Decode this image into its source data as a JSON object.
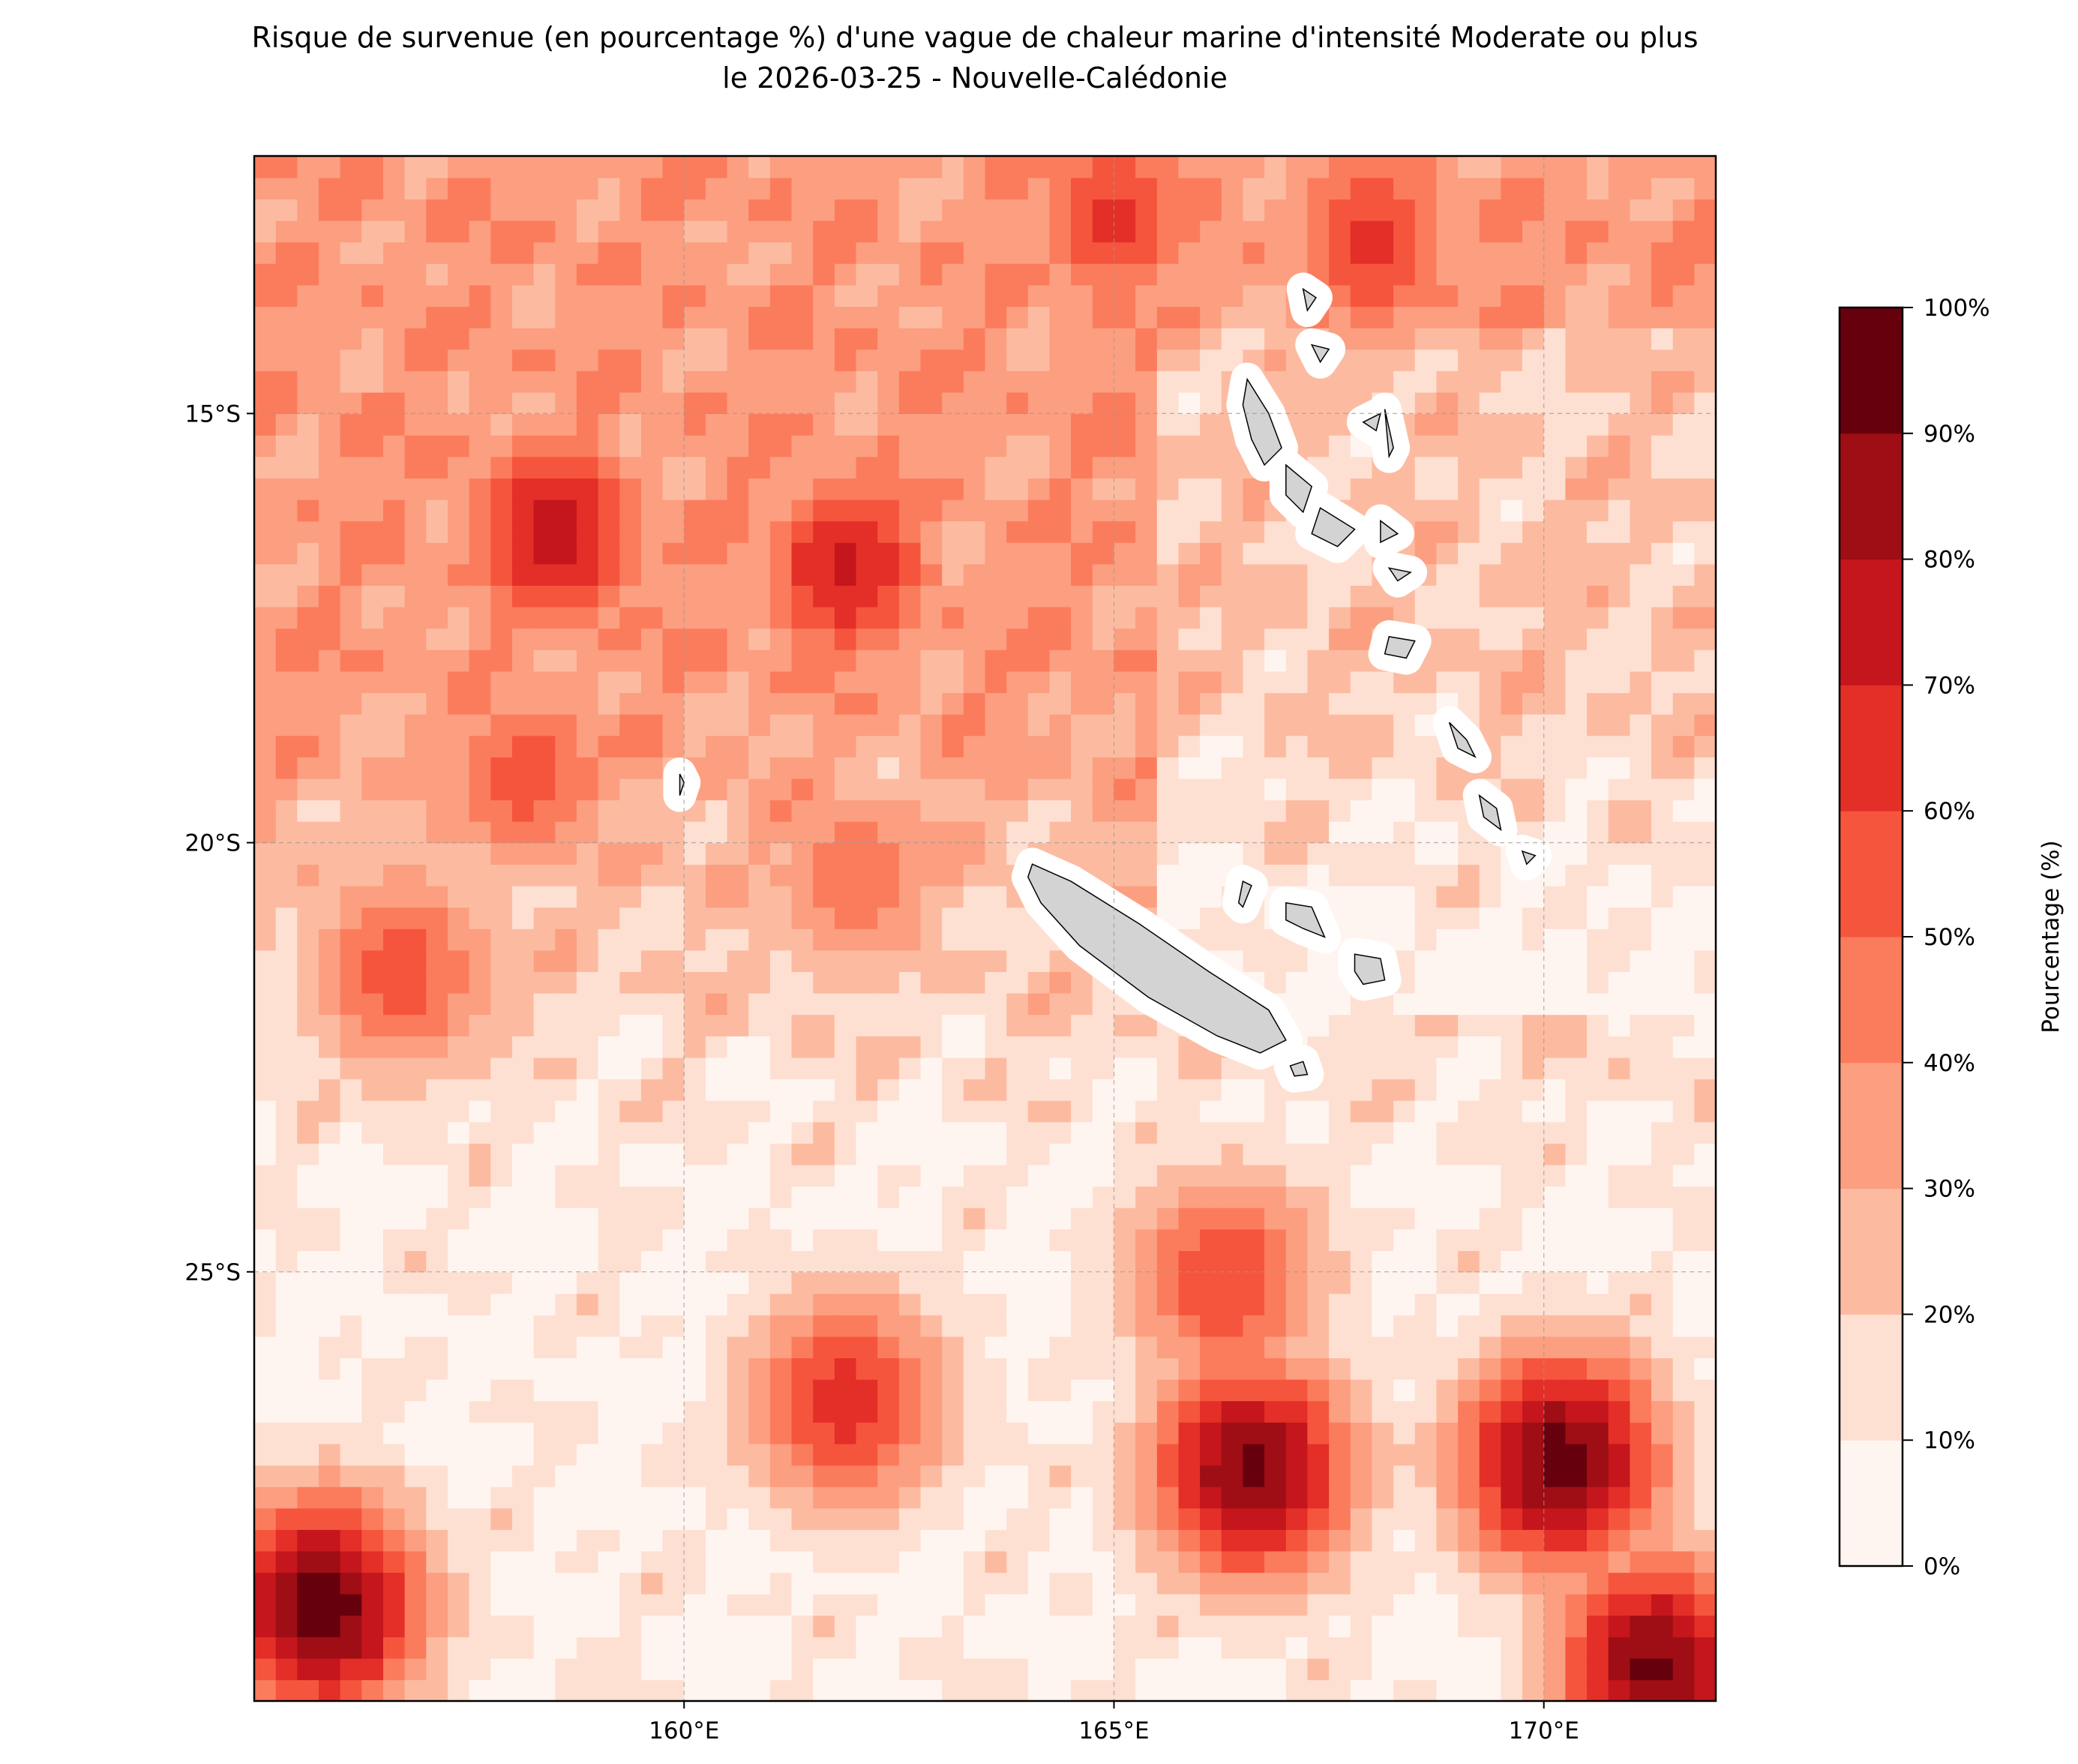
{
  "title": {
    "line1": "Risque de survenue (en pourcentage %) d'une vague de chaleur marine d'intensité Moderate ou plus",
    "line2": "le 2026-03-25 - Nouvelle-Calédonie"
  },
  "chart_data": {
    "type": "heatmap",
    "subtype": "filled-contour map",
    "title": "Risque de survenue (en pourcentage %) d'une vague de chaleur marine d'intensité Moderate ou plus le 2026-03-25 - Nouvelle-Calédonie",
    "xlim": [
      155,
      172
    ],
    "ylim": [
      -30,
      -12
    ],
    "x_ticks": [
      {
        "value": 160,
        "label": "160°E"
      },
      {
        "value": 165,
        "label": "165°E"
      },
      {
        "value": 170,
        "label": "170°E"
      }
    ],
    "y_ticks": [
      {
        "value": -15,
        "label": "15°S"
      },
      {
        "value": -20,
        "label": "20°S"
      },
      {
        "value": -25,
        "label": "25°S"
      }
    ],
    "grid": true,
    "land_color": "#d3d3d3",
    "colorbar": {
      "label": "Pourcentage (%)",
      "levels": [
        0,
        10,
        20,
        30,
        40,
        50,
        60,
        70,
        80,
        90,
        100
      ],
      "tick_labels": [
        "0%",
        "10%",
        "20%",
        "30%",
        "40%",
        "50%",
        "60%",
        "70%",
        "80%",
        "90%",
        "100%"
      ],
      "colors": [
        "#fff5f0",
        "#fee0d2",
        "#fcbba1",
        "#fc9e80",
        "#fb7c5c",
        "#f6553d",
        "#e32f27",
        "#c4161c",
        "#9f0e14",
        "#67000d"
      ]
    },
    "hotspots": [
      {
        "lon": 158.5,
        "lat": -16.4,
        "value": 75
      },
      {
        "lon": 161.9,
        "lat": -16.8,
        "value": 72
      },
      {
        "lon": 165.0,
        "lat": -12.7,
        "value": 62
      },
      {
        "lon": 168.0,
        "lat": -13.0,
        "value": 63
      },
      {
        "lon": 155.8,
        "lat": -28.9,
        "value": 97
      },
      {
        "lon": 161.9,
        "lat": -26.5,
        "value": 66
      },
      {
        "lon": 166.6,
        "lat": -27.3,
        "value": 92
      },
      {
        "lon": 166.3,
        "lat": -25.1,
        "value": 60
      },
      {
        "lon": 170.2,
        "lat": -27.2,
        "value": 96
      },
      {
        "lon": 171.3,
        "lat": -29.6,
        "value": 92
      },
      {
        "lon": 156.7,
        "lat": -21.5,
        "value": 55
      },
      {
        "lon": 158.2,
        "lat": -19.2,
        "value": 55
      },
      {
        "lon": 162.0,
        "lat": -20.4,
        "value": 48
      }
    ]
  }
}
